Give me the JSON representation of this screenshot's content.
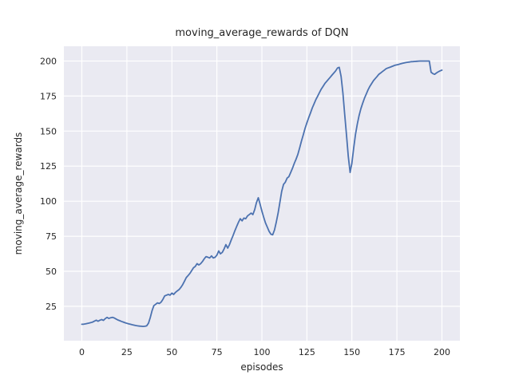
{
  "chart_data": {
    "type": "line",
    "title": "moving_average_rewards of DQN",
    "xlabel": "episodes",
    "ylabel": "moving_average_rewards",
    "xticks": [
      0,
      25,
      50,
      75,
      100,
      125,
      150,
      175,
      200
    ],
    "yticks": [
      25,
      50,
      75,
      100,
      125,
      150,
      175,
      200
    ],
    "xlim": [
      -10,
      210
    ],
    "ylim": [
      0.5,
      210.5
    ],
    "grid": true,
    "legend_visible": false,
    "x_start": 0,
    "x_step": 1,
    "n_points": 201,
    "series": [
      {
        "name": "moving_average_rewards",
        "color": "#4C72B0",
        "values": [
          12.2,
          12.3,
          12.5,
          12.8,
          13.1,
          13.4,
          13.8,
          14.5,
          15.1,
          14.4,
          15.1,
          15.6,
          15.0,
          16.3,
          17.1,
          16.4,
          16.9,
          17.2,
          16.7,
          16.0,
          15.3,
          14.8,
          14.3,
          13.8,
          13.3,
          12.9,
          12.5,
          12.2,
          11.9,
          11.6,
          11.3,
          11.1,
          10.9,
          10.8,
          10.7,
          10.8,
          11.1,
          13.0,
          17.0,
          22.0,
          25.5,
          26.5,
          27.5,
          27.0,
          28.0,
          30.0,
          32.5,
          33.0,
          33.5,
          33.0,
          34.5,
          33.5,
          35.0,
          36.0,
          37.0,
          38.5,
          40.5,
          43.0,
          45.5,
          47.0,
          48.5,
          50.5,
          52.5,
          53.5,
          55.5,
          54.5,
          55.5,
          57.0,
          59.0,
          60.5,
          60.0,
          59.5,
          61.0,
          59.5,
          60.0,
          61.5,
          64.5,
          62.5,
          63.5,
          66.0,
          69.0,
          66.5,
          69.0,
          72.5,
          75.5,
          79.0,
          82.0,
          85.0,
          87.5,
          86.0,
          88.0,
          87.5,
          89.5,
          90.5,
          91.5,
          90.5,
          94.0,
          99.0,
          102.5,
          98.0,
          93.0,
          88.5,
          84.5,
          81.5,
          78.5,
          76.5,
          76.0,
          79.5,
          85.0,
          91.5,
          99.0,
          107.0,
          112.0,
          113.5,
          116.5,
          117.5,
          120.5,
          123.5,
          127.0,
          130.0,
          133.5,
          138.0,
          143.0,
          147.5,
          152.0,
          156.0,
          159.5,
          163.0,
          166.5,
          169.5,
          172.5,
          175.0,
          177.5,
          180.0,
          182.0,
          184.0,
          185.5,
          187.0,
          188.5,
          190.0,
          191.5,
          193.0,
          195.0,
          195.5,
          189.0,
          177.0,
          162.0,
          147.0,
          132.0,
          120.5,
          127.0,
          138.0,
          147.5,
          155.0,
          161.0,
          166.0,
          170.0,
          173.5,
          176.5,
          179.5,
          182.0,
          184.0,
          186.0,
          187.5,
          189.0,
          190.5,
          191.5,
          192.5,
          193.5,
          194.5,
          195.0,
          195.5,
          196.0,
          196.5,
          197.0,
          197.3,
          197.6,
          198.0,
          198.3,
          198.6,
          198.9,
          199.1,
          199.3,
          199.5,
          199.6,
          199.7,
          199.8,
          199.9,
          200.0,
          200.0,
          200.0,
          200.0,
          200.0,
          200.0,
          192.0,
          191.0,
          190.5,
          191.5,
          192.3,
          193.0,
          193.5
        ]
      }
    ],
    "style": {
      "fig_bg": "#FFFFFF",
      "axes_bg": "#EAEAF2",
      "grid_color": "#FFFFFF",
      "text_color": "#262626",
      "line_color": "#4C72B0"
    }
  }
}
